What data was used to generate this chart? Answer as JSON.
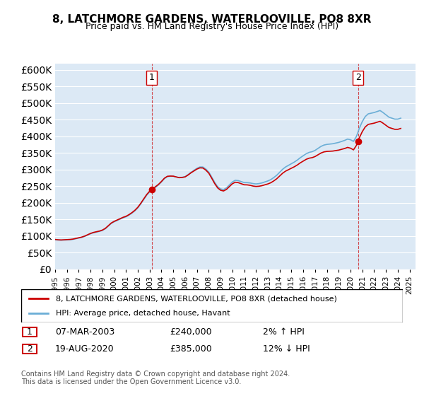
{
  "title": "8, LATCHMORE GARDENS, WATERLOOVILLE, PO8 8XR",
  "subtitle": "Price paid vs. HM Land Registry's House Price Index (HPI)",
  "ylabel_ticks": [
    "£0",
    "£50K",
    "£100K",
    "£150K",
    "£200K",
    "£250K",
    "£300K",
    "£350K",
    "£400K",
    "£450K",
    "£500K",
    "£550K",
    "£600K"
  ],
  "ytick_values": [
    0,
    50000,
    100000,
    150000,
    200000,
    250000,
    300000,
    350000,
    400000,
    450000,
    500000,
    550000,
    600000
  ],
  "ylim": [
    0,
    620000
  ],
  "background_color": "#dce9f5",
  "plot_bg_color": "#dce9f5",
  "line_color_hpi": "#6baed6",
  "line_color_price": "#cc0000",
  "marker1_date_label": "1",
  "marker1_year": 2003.17,
  "marker1_price": 240000,
  "marker2_date_label": "2",
  "marker2_year": 2020.63,
  "marker2_price": 385000,
  "legend_line1": "8, LATCHMORE GARDENS, WATERLOOVILLE, PO8 8XR (detached house)",
  "legend_line2": "HPI: Average price, detached house, Havant",
  "table_row1": [
    "1",
    "07-MAR-2003",
    "£240,000",
    "2% ↑ HPI"
  ],
  "table_row2": [
    "2",
    "19-AUG-2020",
    "£385,000",
    "12% ↓ HPI"
  ],
  "footer": "Contains HM Land Registry data © Crown copyright and database right 2024.\nThis data is licensed under the Open Government Licence v3.0.",
  "hpi_data": {
    "years": [
      1995.0,
      1995.25,
      1995.5,
      1995.75,
      1996.0,
      1996.25,
      1996.5,
      1996.75,
      1997.0,
      1997.25,
      1997.5,
      1997.75,
      1998.0,
      1998.25,
      1998.5,
      1998.75,
      1999.0,
      1999.25,
      1999.5,
      1999.75,
      2000.0,
      2000.25,
      2000.5,
      2000.75,
      2001.0,
      2001.25,
      2001.5,
      2001.75,
      2002.0,
      2002.25,
      2002.5,
      2002.75,
      2003.0,
      2003.25,
      2003.5,
      2003.75,
      2004.0,
      2004.25,
      2004.5,
      2004.75,
      2005.0,
      2005.25,
      2005.5,
      2005.75,
      2006.0,
      2006.25,
      2006.5,
      2006.75,
      2007.0,
      2007.25,
      2007.5,
      2007.75,
      2008.0,
      2008.25,
      2008.5,
      2008.75,
      2009.0,
      2009.25,
      2009.5,
      2009.75,
      2010.0,
      2010.25,
      2010.5,
      2010.75,
      2011.0,
      2011.25,
      2011.5,
      2011.75,
      2012.0,
      2012.25,
      2012.5,
      2012.75,
      2013.0,
      2013.25,
      2013.5,
      2013.75,
      2014.0,
      2014.25,
      2014.5,
      2014.75,
      2015.0,
      2015.25,
      2015.5,
      2015.75,
      2016.0,
      2016.25,
      2016.5,
      2016.75,
      2017.0,
      2017.25,
      2017.5,
      2017.75,
      2018.0,
      2018.25,
      2018.5,
      2018.75,
      2019.0,
      2019.25,
      2019.5,
      2019.75,
      2020.0,
      2020.25,
      2020.5,
      2020.75,
      2021.0,
      2021.25,
      2021.5,
      2021.75,
      2022.0,
      2022.25,
      2022.5,
      2022.75,
      2023.0,
      2023.25,
      2023.5,
      2023.75,
      2024.0,
      2024.25
    ],
    "values": [
      89000,
      88000,
      87500,
      88000,
      88500,
      89000,
      90000,
      92000,
      94000,
      96000,
      99000,
      103000,
      107000,
      110000,
      112000,
      114000,
      117000,
      122000,
      130000,
      138000,
      143000,
      147000,
      151000,
      155000,
      158000,
      163000,
      169000,
      176000,
      185000,
      197000,
      210000,
      223000,
      233000,
      240000,
      247000,
      254000,
      263000,
      273000,
      279000,
      280000,
      280000,
      278000,
      276000,
      277000,
      279000,
      285000,
      292000,
      298000,
      304000,
      308000,
      308000,
      302000,
      293000,
      278000,
      262000,
      249000,
      242000,
      240000,
      245000,
      254000,
      263000,
      268000,
      267000,
      264000,
      261000,
      261000,
      260000,
      258000,
      257000,
      258000,
      260000,
      263000,
      266000,
      270000,
      276000,
      283000,
      292000,
      301000,
      308000,
      313000,
      318000,
      323000,
      329000,
      336000,
      342000,
      348000,
      352000,
      354000,
      358000,
      364000,
      370000,
      374000,
      376000,
      377000,
      378000,
      380000,
      382000,
      385000,
      388000,
      392000,
      390000,
      385000,
      400000,
      425000,
      445000,
      460000,
      468000,
      470000,
      472000,
      475000,
      478000,
      472000,
      465000,
      458000,
      455000,
      452000,
      452000,
      455000
    ]
  },
  "price_data": {
    "years": [
      2003.17,
      2020.63
    ],
    "values": [
      240000,
      385000
    ],
    "hpi_at_sale": [
      240000,
      385000
    ]
  }
}
